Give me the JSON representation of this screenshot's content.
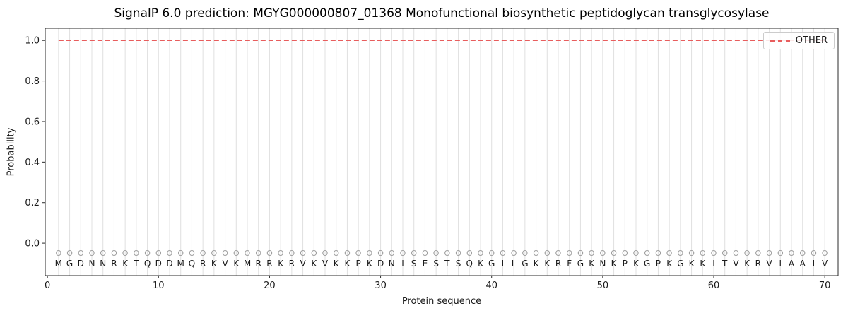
{
  "chart_data": {
    "type": "line",
    "title": "SignalP 6.0 prediction: MGYG000000807_01368 Monofunctional biosynthetic peptidoglycan transglycosylase",
    "xlabel": "Protein sequence",
    "ylabel": "Probability",
    "xlim": [
      -0.2,
      71.2
    ],
    "ylim": [
      -0.16,
      1.06
    ],
    "xticks": [
      0,
      10,
      20,
      30,
      40,
      50,
      60,
      70
    ],
    "yticks": [
      0.0,
      0.2,
      0.4,
      0.6,
      0.8,
      1.0
    ],
    "grid": "light vertical gridline at every residue position 1-70",
    "legend": {
      "position": "upper right",
      "entries": [
        "OTHER"
      ]
    },
    "sequence": "MGDNNRKTQDDMQRKVKMRRKRVKVKKPKDNISESTSQKGILGKKRFGKNKPKGPKGKKITVKRVIAAIV",
    "position_marks": "OOOOOOOOOOOOOOOOOOOOOOOOOOOOOOOOOOOOOOOOOOOOOOOOOOOOOOOOOOOOOOOOOOOOOO",
    "series": [
      {
        "name": "OTHER",
        "color": "#e85d5d",
        "line_style": "dashed",
        "x": [
          1,
          2,
          3,
          4,
          5,
          6,
          7,
          8,
          9,
          10,
          11,
          12,
          13,
          14,
          15,
          16,
          17,
          18,
          19,
          20,
          21,
          22,
          23,
          24,
          25,
          26,
          27,
          28,
          29,
          30,
          31,
          32,
          33,
          34,
          35,
          36,
          37,
          38,
          39,
          40,
          41,
          42,
          43,
          44,
          45,
          46,
          47,
          48,
          49,
          50,
          51,
          52,
          53,
          54,
          55,
          56,
          57,
          58,
          59,
          60,
          61,
          62,
          63,
          64,
          65,
          66,
          67,
          68,
          69,
          70
        ],
        "values": [
          1.0,
          1.0,
          1.0,
          1.0,
          1.0,
          1.0,
          1.0,
          1.0,
          1.0,
          1.0,
          1.0,
          1.0,
          1.0,
          1.0,
          1.0,
          1.0,
          1.0,
          1.0,
          1.0,
          1.0,
          1.0,
          1.0,
          1.0,
          1.0,
          1.0,
          1.0,
          1.0,
          1.0,
          1.0,
          1.0,
          1.0,
          1.0,
          1.0,
          1.0,
          1.0,
          1.0,
          1.0,
          1.0,
          1.0,
          1.0,
          1.0,
          1.0,
          1.0,
          1.0,
          1.0,
          1.0,
          1.0,
          1.0,
          1.0,
          1.0,
          1.0,
          1.0,
          1.0,
          1.0,
          1.0,
          1.0,
          1.0,
          1.0,
          1.0,
          1.0,
          1.0,
          1.0,
          1.0,
          1.0,
          1.0,
          1.0,
          1.0,
          1.0,
          1.0,
          1.0
        ]
      }
    ],
    "colors": {
      "grid": "#e0e0e0",
      "spine": "#2b2b2b",
      "text": "#1a1a1a",
      "mark": "#9e9e9e"
    }
  }
}
